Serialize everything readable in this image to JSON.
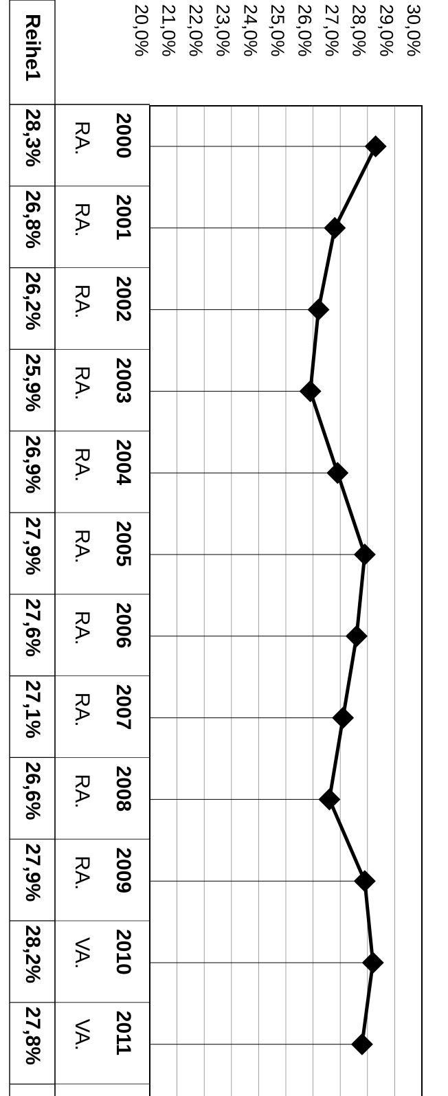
{
  "chart_data": {
    "type": "line",
    "orientation": "rotated-90-clockwise",
    "categories": [
      "2000",
      "2001",
      "2002",
      "2003",
      "2004",
      "2005",
      "2006",
      "2007",
      "2008",
      "2009",
      "2010",
      "2011"
    ],
    "sub_labels": [
      "RA.",
      "RA.",
      "RA.",
      "RA.",
      "RA.",
      "RA.",
      "RA.",
      "RA.",
      "RA.",
      "RA.",
      "VA.",
      "VA."
    ],
    "series": [
      {
        "name": "Reihe1",
        "values": [
          28.3,
          26.8,
          26.2,
          25.9,
          26.9,
          27.9,
          27.6,
          27.1,
          26.6,
          27.9,
          28.2,
          27.8
        ],
        "value_labels": [
          "28,3%",
          "26,8%",
          "26,2%",
          "25,9%",
          "26,9%",
          "27,9%",
          "27,6%",
          "27,1%",
          "26,6%",
          "27,9%",
          "28,2%",
          "27,8%"
        ],
        "marker": "diamond",
        "color": "#000000"
      }
    ],
    "ylim": [
      20,
      30
    ],
    "y_ticks": [
      {
        "value": 30,
        "label": "30,0%"
      },
      {
        "value": 29,
        "label": "29,0%"
      },
      {
        "value": 28,
        "label": "28,0%"
      },
      {
        "value": 27,
        "label": "27,0%"
      },
      {
        "value": 26,
        "label": "26,0%"
      },
      {
        "value": 25,
        "label": "25,0%"
      },
      {
        "value": 24,
        "label": "24,0%"
      },
      {
        "value": 23,
        "label": "23,0%"
      },
      {
        "value": 22,
        "label": "22,0%"
      },
      {
        "value": 21,
        "label": "21,0%"
      },
      {
        "value": 20,
        "label": "20,0%"
      }
    ],
    "grid": true,
    "data_table": true
  }
}
